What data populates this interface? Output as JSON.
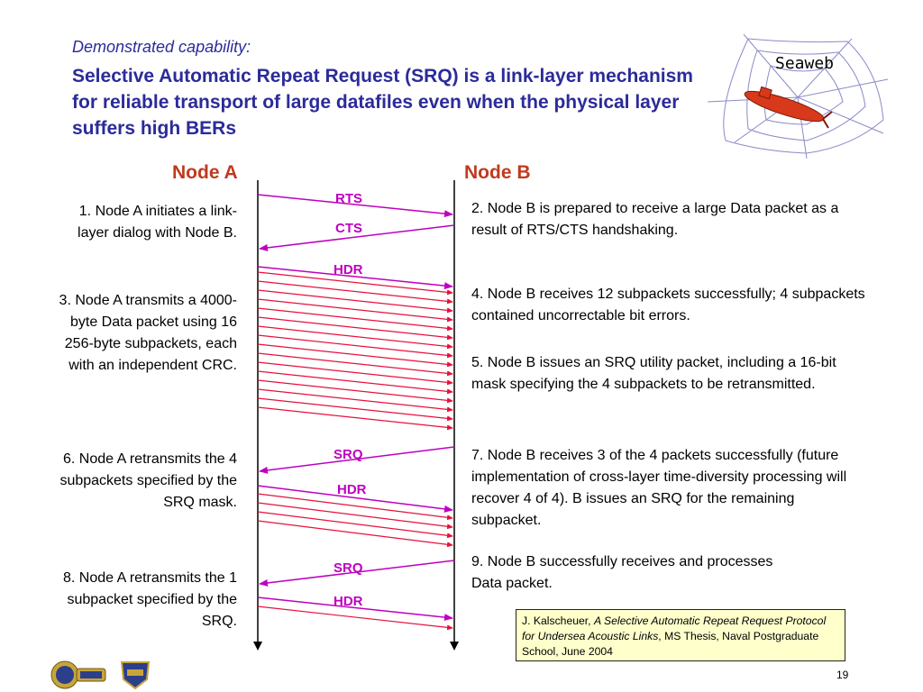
{
  "header": {
    "subtitle": "Demonstrated capability:",
    "title": "Selective Automatic Repeat Request (SRQ) is a link-layer mechanism for reliable transport of large datafiles even when the physical layer suffers high BERs"
  },
  "logo": {
    "label": "Seaweb"
  },
  "nodes": {
    "a": "Node A",
    "b": "Node B"
  },
  "messages": {
    "rts": "RTS",
    "cts": "CTS",
    "hdr1": "HDR",
    "srq1": "SRQ",
    "hdr2": "HDR",
    "srq2": "SRQ",
    "hdr3": "HDR"
  },
  "left_notes": {
    "n1": "1.  Node A initiates a link-layer dialog with Node B.",
    "n3": "3.  Node A transmits a 4000-byte Data packet using 16 256-byte subpackets, each with an independent CRC.",
    "n6": "6.  Node A retransmits the 4 subpackets specified by the SRQ mask.",
    "n8": "8.  Node A retransmits the 1 subpacket specified by the SRQ."
  },
  "right_notes": {
    "n2": "2.  Node B is prepared to receive a large Data packet as a result of RTS/CTS handshaking.",
    "n4": "4.  Node B receives 12 subpackets successfully; 4 subpackets contained uncorrectable bit errors.",
    "n5": "5.  Node B issues an SRQ utility packet, including a 16-bit mask specifying the 4 subpackets to be retransmitted.",
    "n7": "7.  Node B receives 3 of the 4 packets successfully (future implementation of cross-layer time-diversity processing will recover 4 of 4).  B issues an SRQ for the remaining subpacket.",
    "n9": "9.  Node B successfully receives and processes Data packet."
  },
  "reference": {
    "author": "J. Kalscheuer, ",
    "title": "A Selective Automatic Repeat Request Protocol for Undersea Acoustic Links",
    "rest": ", MS Thesis, Naval Postgraduate School, June 2004"
  },
  "page_number": "19",
  "colors": {
    "title": "#2b2b9a",
    "node_head": "#c03a1e",
    "control_arrow": "#bf00bf",
    "data_arrow": "#e8103c"
  }
}
